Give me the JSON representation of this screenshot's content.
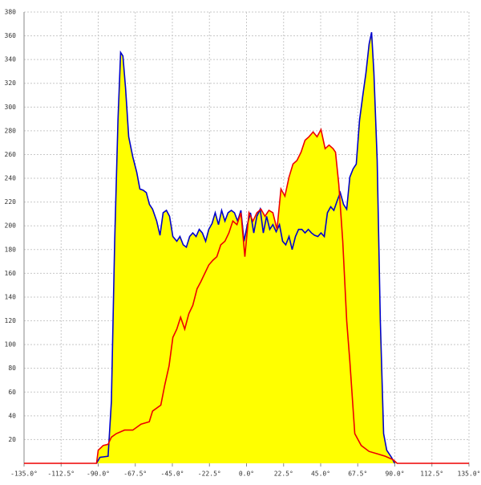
{
  "chart_data": {
    "type": "area-line",
    "xlim": [
      -135,
      135
    ],
    "ylim": [
      0,
      380
    ],
    "xticks": [
      {
        "value": -135,
        "label": "-135.0°"
      },
      {
        "value": -112.5,
        "label": "-112.5°"
      },
      {
        "value": -90,
        "label": "-90.0°"
      },
      {
        "value": -67.5,
        "label": "-67.5°"
      },
      {
        "value": -45,
        "label": "-45.0°"
      },
      {
        "value": -22.5,
        "label": "-22.5°"
      },
      {
        "value": 0,
        "label": "0.0°"
      },
      {
        "value": 22.5,
        "label": "22.5°"
      },
      {
        "value": 45,
        "label": "45.0°"
      },
      {
        "value": 67.5,
        "label": "67.5°"
      },
      {
        "value": 90,
        "label": "90.0°"
      },
      {
        "value": 112.5,
        "label": "112.5°"
      },
      {
        "value": 135,
        "label": "135.0°"
      }
    ],
    "yticks": [
      20,
      40,
      60,
      80,
      100,
      120,
      140,
      160,
      180,
      200,
      220,
      240,
      260,
      280,
      300,
      320,
      340,
      360,
      380
    ],
    "grid": true,
    "fill_color": "#ffff00",
    "series": [
      {
        "color": "#0000cc",
        "x": [
          -91,
          -89,
          -84,
          -82,
          -80,
          -78,
          -76.4,
          -75,
          -73.4,
          -71.5,
          -69,
          -66.6,
          -64.7,
          -62.7,
          -60.8,
          -58.9,
          -57,
          -54.5,
          -52.5,
          -50.6,
          -48.6,
          -46.7,
          -44.7,
          -42.3,
          -40.4,
          -38.4,
          -36.5,
          -34.5,
          -32.6,
          -30.6,
          -28.7,
          -26.8,
          -24.8,
          -22.9,
          -20.9,
          -19,
          -17,
          -15.1,
          -13.1,
          -11.2,
          -9.2,
          -7.3,
          -5.4,
          -3.4,
          -1.5,
          0.5,
          2.4,
          4.4,
          6.3,
          8.3,
          10.2,
          12.2,
          14.1,
          16,
          18,
          20,
          21.9,
          23.8,
          25.8,
          27.7,
          29.7,
          31.6,
          33.6,
          35.5,
          37.5,
          39.4,
          41.3,
          43.3,
          45.2,
          47.2,
          49.1,
          51.1,
          53,
          55,
          56.9,
          58.9,
          60.8,
          62.7,
          64.7,
          66.6,
          68.6,
          70.5,
          72.5,
          74.4,
          75.9,
          77.3,
          79.3,
          81.2,
          83.2,
          85.1,
          88,
          89.9
        ],
        "values": [
          0,
          5,
          6,
          52,
          187,
          289,
          346,
          343,
          316,
          275,
          258,
          245,
          231,
          230,
          228,
          218,
          214,
          204,
          192,
          211,
          213,
          208,
          191,
          187,
          191,
          184,
          182,
          191,
          194,
          191,
          197,
          194,
          187,
          197,
          202,
          211,
          201,
          213,
          204,
          211,
          213,
          211,
          204,
          213,
          187,
          201,
          211,
          194,
          208,
          214,
          194,
          208,
          197,
          201,
          195,
          201,
          187,
          184,
          191,
          180,
          191,
          197,
          197,
          194,
          197,
          194,
          192,
          191,
          194,
          191,
          211,
          216,
          213,
          221,
          228,
          218,
          214,
          241,
          248,
          252,
          289,
          309,
          329,
          353,
          363,
          329,
          255,
          120,
          25,
          11,
          5,
          0
        ]
      },
      {
        "color": "#ee0000",
        "x": [
          -135,
          -91,
          -90,
          -87,
          -84,
          -82,
          -79,
          -74,
          -69,
          -64,
          -59,
          -57,
          -52,
          -49.6,
          -47,
          -44.7,
          -42.3,
          -40,
          -37.5,
          -35,
          -32.6,
          -30,
          -27.7,
          -25.3,
          -22.9,
          -20.4,
          -18,
          -15.6,
          -13.1,
          -10.7,
          -8.3,
          -5.8,
          -3.4,
          -1,
          1.5,
          3.9,
          6.3,
          8.8,
          11.2,
          13.6,
          16,
          18.5,
          20.9,
          23.3,
          25.8,
          28.2,
          30.6,
          33.1,
          35.5,
          37.9,
          40.4,
          42.8,
          45.2,
          47.7,
          50.1,
          52.5,
          54,
          56,
          58.4,
          60.8,
          62.7,
          65.7,
          69.6,
          74.4,
          79.3,
          84.1,
          89,
          91.4,
          135
        ],
        "values": [
          0,
          0,
          11,
          15,
          16,
          22,
          25,
          28,
          28,
          33,
          35,
          44,
          49,
          66,
          82,
          106,
          113,
          123,
          113,
          126,
          133,
          147,
          153,
          160,
          167,
          171,
          174,
          184,
          187,
          194,
          204,
          201,
          211,
          174,
          211,
          204,
          211,
          214,
          208,
          213,
          211,
          197,
          231,
          225,
          241,
          252,
          255,
          262,
          272,
          275,
          279,
          275,
          281,
          265,
          268,
          265,
          262,
          235,
          187,
          120,
          86,
          25,
          15,
          10,
          8,
          6,
          3,
          0,
          0
        ]
      }
    ]
  }
}
